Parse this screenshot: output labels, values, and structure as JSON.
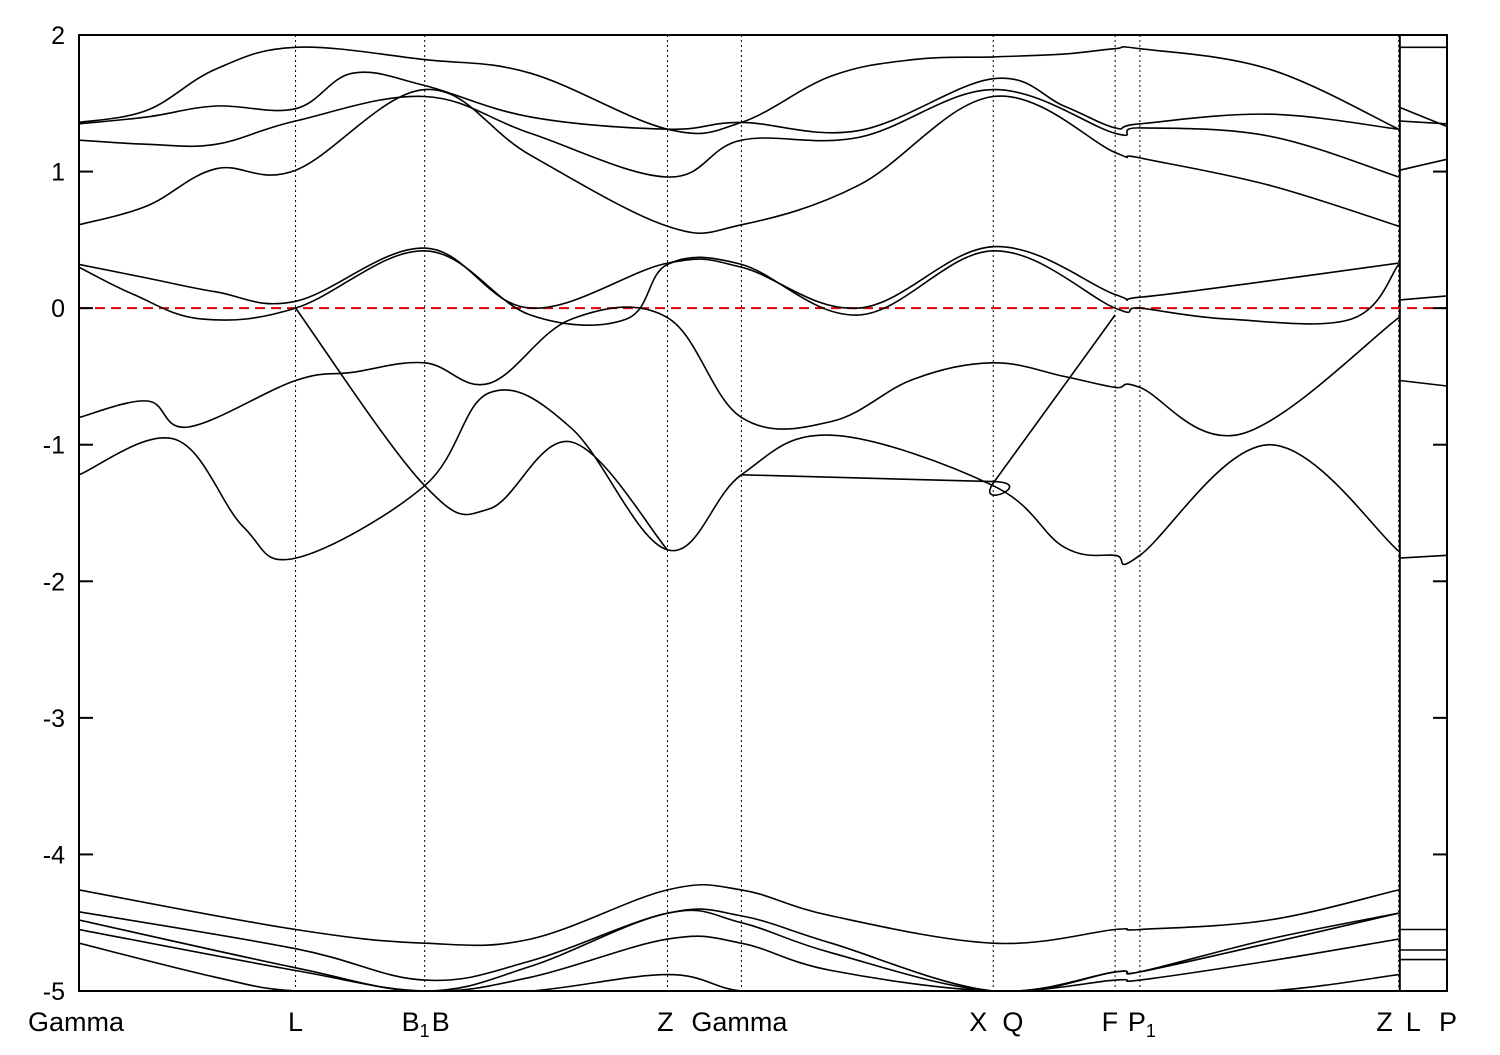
{
  "chart_data": {
    "type": "line",
    "title": "",
    "xlabel": "",
    "ylabel": "",
    "ylim": [
      -5,
      2
    ],
    "yticks": [
      -5,
      -4,
      -3,
      -2,
      -1,
      0,
      1,
      2
    ],
    "ytick_labels": [
      "-5",
      "-4",
      "-3",
      "-2",
      "-1",
      "0",
      "1",
      "2"
    ],
    "xlim": [
      0,
      1
    ],
    "grid": "vertical dotted lines at high-symmetry points",
    "reference_line": {
      "y": 0,
      "color": "#dd0000",
      "style": "dashed"
    },
    "line_color": "#000000",
    "panel_break_x": 0.9655,
    "high_symmetry_points": [
      {
        "x": 0.0,
        "label": "Gamma",
        "sub": "",
        "vline": false
      },
      {
        "x": 0.1583,
        "label": "L",
        "sub": "",
        "vline": true
      },
      {
        "x": 0.2527,
        "label": "B",
        "sub": "1",
        "vline": true
      },
      {
        "x": 0.2535,
        "label": "B",
        "sub": "",
        "vline": false
      },
      {
        "x": 0.4302,
        "label": "Z",
        "sub": "",
        "vline": true
      },
      {
        "x": 0.4842,
        "label": "Gamma",
        "sub": "",
        "vline": true
      },
      {
        "x": 0.6683,
        "label": "X",
        "sub": "",
        "vline": true
      },
      {
        "x": 0.6691,
        "label": "Q",
        "sub": "",
        "vline": false
      },
      {
        "x": 0.7574,
        "label": "F",
        "sub": "",
        "vline": true
      },
      {
        "x": 0.7755,
        "label": "P",
        "sub": "1",
        "vline": true
      },
      {
        "x": 0.9647,
        "label": "Z",
        "sub": "",
        "vline": true
      },
      {
        "x": 0.9655,
        "label": "L",
        "sub": "",
        "vline": false
      },
      {
        "x": 1.0,
        "label": "P",
        "sub": "",
        "vline": false
      }
    ],
    "series": [
      {
        "x": [
          0,
          0.05,
          0.1,
          0.1583,
          0.2527,
          0.33,
          0.4302,
          0.4842,
          0.55,
          0.61,
          0.6683,
          0.72,
          0.7574,
          0.7755,
          0.87,
          0.9647
        ],
        "y": [
          1.36,
          1.45,
          1.75,
          1.91,
          1.82,
          1.72,
          1.31,
          1.36,
          1.7,
          1.82,
          1.84,
          1.86,
          1.9,
          1.9,
          1.75,
          1.31
        ]
      },
      {
        "x": [
          0,
          0.05,
          0.1,
          0.1583,
          0.2,
          0.2527,
          0.33,
          0.4302,
          0.4842,
          0.57,
          0.6683,
          0.72,
          0.7574,
          0.7755,
          0.87,
          0.9647
        ],
        "y": [
          1.35,
          1.4,
          1.48,
          1.46,
          1.72,
          1.63,
          1.4,
          1.31,
          1.36,
          1.3,
          1.68,
          1.48,
          1.32,
          1.35,
          1.42,
          1.31
        ]
      },
      {
        "x": [
          0,
          0.05,
          0.1,
          0.1583,
          0.2527,
          0.33,
          0.4302,
          0.4842,
          0.57,
          0.6683,
          0.7574,
          0.7755,
          0.87,
          0.9647
        ],
        "y": [
          1.23,
          1.2,
          1.2,
          1.37,
          1.55,
          1.28,
          0.96,
          1.23,
          1.25,
          1.6,
          1.28,
          1.32,
          1.26,
          0.96
        ]
      },
      {
        "x": [
          0,
          0.05,
          0.1,
          0.1583,
          0.2527,
          0.33,
          0.4302,
          0.4842,
          0.57,
          0.6683,
          0.7574,
          0.7755,
          0.87,
          0.9647
        ],
        "y": [
          0.61,
          0.75,
          1.02,
          1.01,
          1.6,
          1.12,
          0.6,
          0.61,
          0.9,
          1.55,
          1.14,
          1.1,
          0.9,
          0.6
        ]
      },
      {
        "x": [
          0,
          0.05,
          0.1,
          0.1583,
          0.2527,
          0.33,
          0.4302,
          0.4842,
          0.57,
          0.6683,
          0.7574,
          0.7755,
          0.87,
          0.9647
        ],
        "y": [
          0.32,
          0.22,
          0.12,
          0.05,
          0.44,
          0.0,
          0.33,
          0.3,
          0.0,
          0.45,
          0.1,
          0.08,
          0.2,
          0.33
        ]
      },
      {
        "x": [
          0,
          0.04,
          0.09,
          0.1583,
          0.2527,
          0.33,
          0.4,
          0.4302,
          0.4842,
          0.57,
          0.6683,
          0.7574,
          0.7755,
          0.84,
          0.93,
          0.9647
        ],
        "y": [
          0.3,
          0.1,
          -0.08,
          0.0,
          0.42,
          -0.05,
          -0.08,
          0.32,
          0.32,
          -0.05,
          0.42,
          0.0,
          0.0,
          -0.08,
          -0.08,
          0.32
        ]
      },
      {
        "x": [
          0,
          0.05,
          0.08,
          0.1583,
          0.2,
          0.2527,
          0.3,
          0.36,
          0.4302,
          0.4842,
          0.55,
          0.61,
          0.6683,
          0.72,
          0.7574,
          0.7755,
          0.85,
          0.9647
        ],
        "y": [
          -0.8,
          -0.68,
          -0.87,
          -0.53,
          -0.47,
          -0.4,
          -0.55,
          -0.08,
          -0.07,
          -0.8,
          -0.83,
          -0.52,
          -0.4,
          -0.5,
          -0.58,
          -0.58,
          -0.92,
          -0.07
        ]
      },
      {
        "x": [
          0,
          0.07,
          0.12,
          0.1583,
          0.2527,
          0.3,
          0.36,
          0.4302,
          0.4842,
          0.55,
          0.6683,
          0.72,
          0.7574,
          0.7755,
          0.87,
          0.9647
        ],
        "y": [
          -1.22,
          -0.96,
          -1.6,
          -1.83,
          -1.3,
          -0.62,
          -0.88,
          -1.77,
          -1.22,
          -0.93,
          -1.3,
          -1.75,
          -1.81,
          -1.81,
          -1.0,
          -1.78
        ]
      },
      {
        "x": [
          0.1583,
          0.2527,
          0.3,
          0.36,
          0.4302
        ],
        "y": [
          0.0,
          -1.3,
          -1.47,
          -0.98,
          -1.77
        ]
      },
      {
        "x": [
          0.4842,
          0.6683,
          0.6691,
          0.7574
        ],
        "y": [
          -1.22,
          -1.27,
          -1.27,
          -0.05
        ]
      },
      {
        "x": [
          0,
          0.1583,
          0.2527,
          0.33,
          0.4302,
          0.4842,
          0.55,
          0.6683,
          0.7574,
          0.7755,
          0.87,
          0.9647
        ],
        "y": [
          -4.26,
          -4.55,
          -4.65,
          -4.62,
          -4.26,
          -4.26,
          -4.45,
          -4.65,
          -4.55,
          -4.55,
          -4.48,
          -4.26
        ]
      },
      {
        "x": [
          0,
          0.1583,
          0.2527,
          0.33,
          0.4302,
          0.4842,
          0.55,
          0.6683,
          0.7574,
          0.7755,
          0.87,
          0.9647
        ],
        "y": [
          -4.42,
          -4.69,
          -4.92,
          -4.78,
          -4.43,
          -4.45,
          -4.65,
          -5.0,
          -4.86,
          -4.86,
          -4.62,
          -4.43
        ]
      },
      {
        "x": [
          0,
          0.1583,
          0.2527,
          0.33,
          0.4302,
          0.4842,
          0.55,
          0.6683,
          0.7574,
          0.7755,
          0.87,
          0.9647
        ],
        "y": [
          -4.48,
          -4.83,
          -5.0,
          -4.82,
          -4.43,
          -4.5,
          -4.72,
          -5.0,
          -4.86,
          -4.86,
          -4.65,
          -4.43
        ]
      },
      {
        "x": [
          0,
          0.1583,
          0.2527,
          0.33,
          0.4302,
          0.4842,
          0.55,
          0.6683,
          0.7574,
          0.7755,
          0.87,
          0.9647
        ],
        "y": [
          -4.55,
          -4.85,
          -5.0,
          -4.9,
          -4.62,
          -4.65,
          -4.85,
          -5.0,
          -4.92,
          -4.92,
          -4.78,
          -4.62
        ]
      },
      {
        "x": [
          0,
          0.1,
          0.1583,
          0.2527,
          0.33,
          0.4302,
          0.4842,
          0.55,
          0.6683,
          0.7574,
          0.7755,
          0.87,
          0.9647
        ],
        "y": [
          -4.65,
          -4.9,
          -5.0,
          -5.0,
          -5.0,
          -4.88,
          -5.0,
          -5.0,
          -5.0,
          -5.0,
          -5.0,
          -5.0,
          -4.88
        ]
      },
      {
        "x": [
          0.9655,
          1.0
        ],
        "y": [
          1.91,
          1.91
        ]
      },
      {
        "x": [
          0.9655,
          1.0
        ],
        "y": [
          1.47,
          1.33
        ]
      },
      {
        "x": [
          0.9655,
          1.0
        ],
        "y": [
          1.37,
          1.35
        ]
      },
      {
        "x": [
          0.9655,
          1.0
        ],
        "y": [
          1.01,
          1.09
        ]
      },
      {
        "x": [
          0.9655,
          1.0
        ],
        "y": [
          0.06,
          0.09
        ]
      },
      {
        "x": [
          0.9655,
          1.0
        ],
        "y": [
          -0.53,
          -0.57
        ]
      },
      {
        "x": [
          0.9655,
          1.0
        ],
        "y": [
          -1.83,
          -1.81
        ]
      },
      {
        "x": [
          0.9655,
          1.0
        ],
        "y": [
          -4.55,
          -4.55
        ]
      },
      {
        "x": [
          0.9655,
          1.0
        ],
        "y": [
          -4.7,
          -4.7
        ]
      },
      {
        "x": [
          0.9655,
          1.0
        ],
        "y": [
          -4.77,
          -4.77
        ]
      }
    ]
  }
}
